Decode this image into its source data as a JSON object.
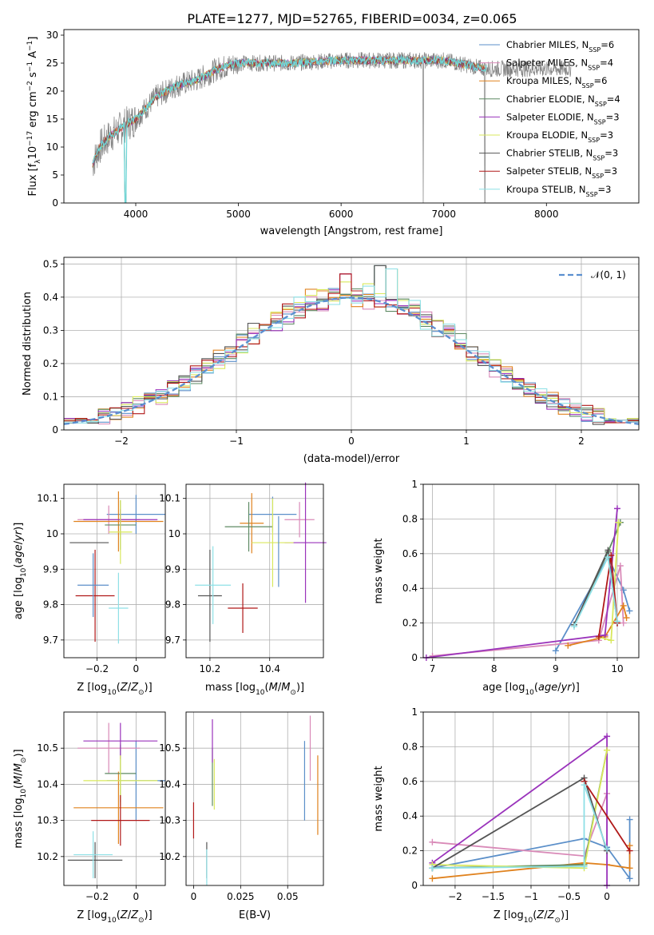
{
  "figure": {
    "title": "PLATE=1277, MJD=52765, FIBERID=0034, z=0.065"
  },
  "colors": {
    "series": [
      "#5b8fc9",
      "#d98ab8",
      "#e0821e",
      "#5e8a63",
      "#9a33bb",
      "#d9e85c",
      "#555555",
      "#b01818",
      "#8ee0e6"
    ],
    "gray": "#808080",
    "fit": "#6fd6d6",
    "normal": "#5b8fd0",
    "grid": "#b0b0b0"
  },
  "legend": {
    "items": [
      {
        "base": "Chabrier MILES, N",
        "sub": "SSP",
        "tail": "=6"
      },
      {
        "base": "Salpeter MILES, N",
        "sub": "SSP",
        "tail": "=4"
      },
      {
        "base": "Kroupa MILES, N",
        "sub": "SSP",
        "tail": "=6"
      },
      {
        "base": "Chabrier ELODIE, N",
        "sub": "SSP",
        "tail": "=4"
      },
      {
        "base": "Salpeter ELODIE, N",
        "sub": "SSP",
        "tail": "=3"
      },
      {
        "base": "Kroupa ELODIE, N",
        "sub": "SSP",
        "tail": "=3"
      },
      {
        "base": "Chabrier STELIB, N",
        "sub": "SSP",
        "tail": "=3"
      },
      {
        "base": "Salpeter STELIB, N",
        "sub": "SSP",
        "tail": "=3"
      },
      {
        "base": "Kroupa STELIB, N",
        "sub": "SSP",
        "tail": "=3"
      }
    ],
    "normal_label": "𝒩(0, 1)"
  },
  "chart_data": [
    {
      "id": "spectrum",
      "type": "line",
      "xlabel": "wavelength [Angstrom, rest frame]",
      "ylabel": "Flux [f_λ 10^-17 erg cm^-2 s^-1 A^-1]",
      "xlim": [
        3300,
        8900
      ],
      "ylim": [
        0,
        31
      ],
      "xticks": [
        4000,
        5000,
        6000,
        7000,
        8000
      ],
      "yticks": [
        0,
        5,
        10,
        15,
        20,
        25,
        30
      ],
      "profile": {
        "x": [
          3580,
          3650,
          3750,
          3900,
          4000,
          4100,
          4200,
          4300,
          4400,
          4500,
          4600,
          4700,
          4800,
          4900,
          5000,
          5200,
          5500,
          6000,
          6500,
          7000,
          7400
        ],
        "y": [
          7,
          10,
          12,
          14,
          15,
          17,
          19,
          20,
          21,
          21.5,
          22,
          23,
          24,
          24.5,
          25,
          25,
          25,
          25.5,
          25.5,
          25.5,
          24
        ]
      },
      "data_range": [
        3580,
        8240
      ],
      "model_range": [
        3580,
        7420
      ]
    },
    {
      "id": "residual_hist",
      "type": "histogram",
      "xlabel": "(data-model)/error",
      "ylabel": "Normed distribution",
      "xlim": [
        -2.5,
        2.5
      ],
      "ylim": [
        0,
        0.52
      ],
      "xticks": [
        -2,
        -1,
        0,
        1,
        2
      ],
      "yticks": [
        0,
        0.1,
        0.2,
        0.3,
        0.4,
        0.5
      ],
      "bin_width": 0.1,
      "peak_bins": [
        {
          "x": 0.3,
          "y": 0.495
        },
        {
          "x": 0.0,
          "y": 0.47
        },
        {
          "x": 0.4,
          "y": 0.485
        }
      ]
    },
    {
      "id": "age_vs_Z",
      "type": "errorbar",
      "xlabel": "Z [log10(Z/Z⊙)]",
      "ylabel": "age [log10(age/yr)]",
      "xlim": [
        -0.37,
        0.15
      ],
      "ylim": [
        9.65,
        10.14
      ],
      "xticks": [
        -0.2,
        0.0
      ],
      "yticks": [
        9.7,
        9.8,
        9.9,
        10.0,
        10.1
      ],
      "points": [
        {
          "x": 0.0,
          "y": 10.055,
          "xerr": 0.15,
          "yerr": 0.055
        },
        {
          "x": -0.14,
          "y": 10.04,
          "xerr": 0.16,
          "yerr": 0.04
        },
        {
          "x": -0.09,
          "y": 10.035,
          "xerr": 0.23,
          "yerr": 0.085
        },
        {
          "x": -0.08,
          "y": 10.025,
          "xerr": 0.08,
          "yerr": 0.07
        },
        {
          "x": -0.08,
          "y": 10.04,
          "xerr": 0.19,
          "yerr": 0.03
        },
        {
          "x": -0.08,
          "y": 10.005,
          "xerr": 0.06,
          "yerr": 0.09
        },
        {
          "x": -0.24,
          "y": 9.975,
          "xerr": 0.1,
          "yerr": 0.0
        },
        {
          "x": -0.21,
          "y": 9.825,
          "xerr": 0.1,
          "yerr": 0.13
        },
        {
          "x": -0.09,
          "y": 9.79,
          "xerr": 0.05,
          "yerr": 0.1
        },
        {
          "x": -0.22,
          "y": 9.855,
          "xerr": 0.08,
          "yerr": 0.09
        }
      ]
    },
    {
      "id": "age_vs_mass",
      "type": "errorbar",
      "xlabel": "mass [log10(M/M⊙)]",
      "ylabel": "",
      "xlim": [
        10.12,
        10.58
      ],
      "ylim": [
        9.65,
        10.14
      ],
      "xticks": [
        10.2,
        10.4
      ],
      "yticks": [
        9.7,
        9.8,
        9.9,
        10.0,
        10.1
      ],
      "points": [
        {
          "x": 10.41,
          "y": 10.055,
          "xerr": 0.08,
          "yerr": 0.05
        },
        {
          "x": 10.5,
          "y": 10.04,
          "xerr": 0.05,
          "yerr": 0.05
        },
        {
          "x": 10.34,
          "y": 10.03,
          "xerr": 0.04,
          "yerr": 0.085
        },
        {
          "x": 10.33,
          "y": 10.02,
          "xerr": 0.08,
          "yerr": 0.07
        },
        {
          "x": 10.52,
          "y": 9.975,
          "xerr": 0.07,
          "yerr": 0.17
        },
        {
          "x": 10.41,
          "y": 9.975,
          "xerr": 0.07,
          "yerr": 0.125
        },
        {
          "x": 10.2,
          "y": 9.825,
          "xerr": 0.04,
          "yerr": 0.13
        },
        {
          "x": 10.31,
          "y": 9.79,
          "xerr": 0.05,
          "yerr": 0.07
        },
        {
          "x": 10.21,
          "y": 9.855,
          "xerr": 0.06,
          "yerr": 0.11
        },
        {
          "x": 10.43,
          "y": 9.95,
          "xerr": 0.0,
          "yerr": 0.1
        }
      ]
    },
    {
      "id": "weight_vs_age",
      "type": "line",
      "xlabel": "age [log10(age/yr)]",
      "ylabel": "mass weight",
      "xlim": [
        6.85,
        10.35
      ],
      "ylim": [
        0,
        1
      ],
      "xticks": [
        7,
        8,
        9,
        10
      ],
      "yticks": [
        0,
        0.2,
        0.4,
        0.6,
        0.8,
        1.0
      ],
      "series": [
        {
          "x": [
            9.0,
            9.85,
            10.1,
            10.2
          ],
          "y": [
            0.04,
            0.58,
            0.39,
            0.27
          ]
        },
        {
          "x": [
            7.0,
            9.7,
            10.05,
            10.1
          ],
          "y": [
            0.01,
            0.1,
            0.53,
            0.2
          ]
        },
        {
          "x": [
            9.2,
            9.8,
            10.1,
            10.15
          ],
          "y": [
            0.07,
            0.12,
            0.3,
            0.23
          ]
        },
        {
          "x": [
            9.3,
            9.85,
            10.05
          ],
          "y": [
            0.19,
            0.61,
            0.78
          ]
        },
        {
          "x": [
            6.9,
            9.8,
            10.0
          ],
          "y": [
            0.0,
            0.13,
            0.86
          ]
        },
        {
          "x": [
            9.7,
            9.9,
            10.02
          ],
          "y": [
            0.12,
            0.1,
            0.78
          ]
        },
        {
          "x": [
            9.3,
            9.85,
            10.0
          ],
          "y": [
            0.19,
            0.62,
            0.2
          ]
        },
        {
          "x": [
            9.7,
            9.9,
            10.0
          ],
          "y": [
            0.12,
            0.59,
            0.2
          ]
        },
        {
          "x": [
            9.3,
            9.85,
            10.0
          ],
          "y": [
            0.18,
            0.58,
            0.21
          ]
        }
      ]
    },
    {
      "id": "mass_vs_Z",
      "type": "errorbar",
      "xlabel": "Z [log10(Z/Z⊙)]",
      "ylabel": "mass [log10(M/M⊙)]",
      "xlim": [
        -0.37,
        0.15
      ],
      "ylim": [
        10.12,
        10.6
      ],
      "xticks": [
        -0.2,
        0.0
      ],
      "yticks": [
        10.2,
        10.3,
        10.4,
        10.5
      ],
      "points": [
        {
          "x": 0.0,
          "y": 10.41,
          "xerr": 0.15,
          "yerr": 0.11
        },
        {
          "x": -0.14,
          "y": 10.5,
          "xerr": 0.16,
          "yerr": 0.07
        },
        {
          "x": -0.09,
          "y": 10.335,
          "xerr": 0.23,
          "yerr": 0.1
        },
        {
          "x": -0.08,
          "y": 10.43,
          "xerr": 0.08,
          "yerr": 0.08
        },
        {
          "x": -0.08,
          "y": 10.52,
          "xerr": 0.19,
          "yerr": 0.05
        },
        {
          "x": -0.08,
          "y": 10.41,
          "xerr": 0.19,
          "yerr": 0.07
        },
        {
          "x": -0.21,
          "y": 10.19,
          "xerr": 0.14,
          "yerr": 0.05
        },
        {
          "x": -0.08,
          "y": 10.3,
          "xerr": 0.15,
          "yerr": 0.07
        },
        {
          "x": -0.22,
          "y": 10.205,
          "xerr": 0.1,
          "yerr": 0.065
        }
      ]
    },
    {
      "id": "mass_vs_EBV",
      "type": "errorbar",
      "xlabel": "E(B-V)",
      "ylabel": "",
      "xlim": [
        -0.004,
        0.069
      ],
      "ylim": [
        10.12,
        10.6
      ],
      "xticks": [
        0.0,
        0.025,
        0.05
      ],
      "yticks": [
        10.2,
        10.3,
        10.4,
        10.5
      ],
      "points": [
        {
          "x": 0.059,
          "y": 10.41,
          "xerr": 0,
          "yerr": 0.11
        },
        {
          "x": 0.062,
          "y": 10.5,
          "xerr": 0,
          "yerr": 0.09
        },
        {
          "x": 0.066,
          "y": 10.37,
          "xerr": 0,
          "yerr": 0.11
        },
        {
          "x": 0.01,
          "y": 10.42,
          "xerr": 0,
          "yerr": 0.08
        },
        {
          "x": 0.01,
          "y": 10.52,
          "xerr": 0,
          "yerr": 0.06
        },
        {
          "x": 0.011,
          "y": 10.4,
          "xerr": 0,
          "yerr": 0.07
        },
        {
          "x": 0.007,
          "y": 10.19,
          "xerr": 0,
          "yerr": 0.05
        },
        {
          "x": 0.0,
          "y": 10.3,
          "xerr": 0,
          "yerr": 0.05
        },
        {
          "x": 0.007,
          "y": 10.17,
          "xerr": 0,
          "yerr": 0.05
        }
      ]
    },
    {
      "id": "weight_vs_Z",
      "type": "line",
      "xlabel": "Z [log10(Z/Z⊙)]",
      "ylabel": "mass weight",
      "xlim": [
        -2.42,
        0.42
      ],
      "ylim": [
        0,
        1
      ],
      "xticks": [
        -2.0,
        -1.5,
        -1.0,
        -0.5,
        0.0
      ],
      "yticks": [
        0,
        0.2,
        0.4,
        0.6,
        0.8,
        1.0
      ],
      "series": [
        {
          "x": [
            -2.3,
            -0.3,
            0.0,
            0.3,
            0.3
          ],
          "y": [
            0.1,
            0.27,
            0.22,
            0.04,
            0.38
          ]
        },
        {
          "x": [
            -2.3,
            -0.3,
            0.0,
            0.0
          ],
          "y": [
            0.25,
            0.17,
            0.53,
            0.2
          ]
        },
        {
          "x": [
            -2.3,
            -0.3,
            0.0,
            0.3,
            0.3
          ],
          "y": [
            0.04,
            0.13,
            0.12,
            0.1,
            0.23
          ]
        },
        {
          "x": [
            -2.3,
            -0.3,
            0.0
          ],
          "y": [
            0.1,
            0.12,
            0.78
          ]
        },
        {
          "x": [
            -2.3,
            0.0,
            0.0
          ],
          "y": [
            0.13,
            0.86,
            0.0
          ]
        },
        {
          "x": [
            -2.3,
            -0.3,
            0.0
          ],
          "y": [
            0.12,
            0.1,
            0.78
          ]
        },
        {
          "x": [
            -2.3,
            -0.3,
            0.0
          ],
          "y": [
            0.1,
            0.62,
            0.2
          ]
        },
        {
          "x": [
            -0.3,
            0.3
          ],
          "y": [
            0.6,
            0.2
          ]
        },
        {
          "x": [
            -2.3,
            -0.3,
            -0.3,
            0.0
          ],
          "y": [
            0.1,
            0.11,
            0.58,
            0.21
          ]
        }
      ]
    }
  ]
}
